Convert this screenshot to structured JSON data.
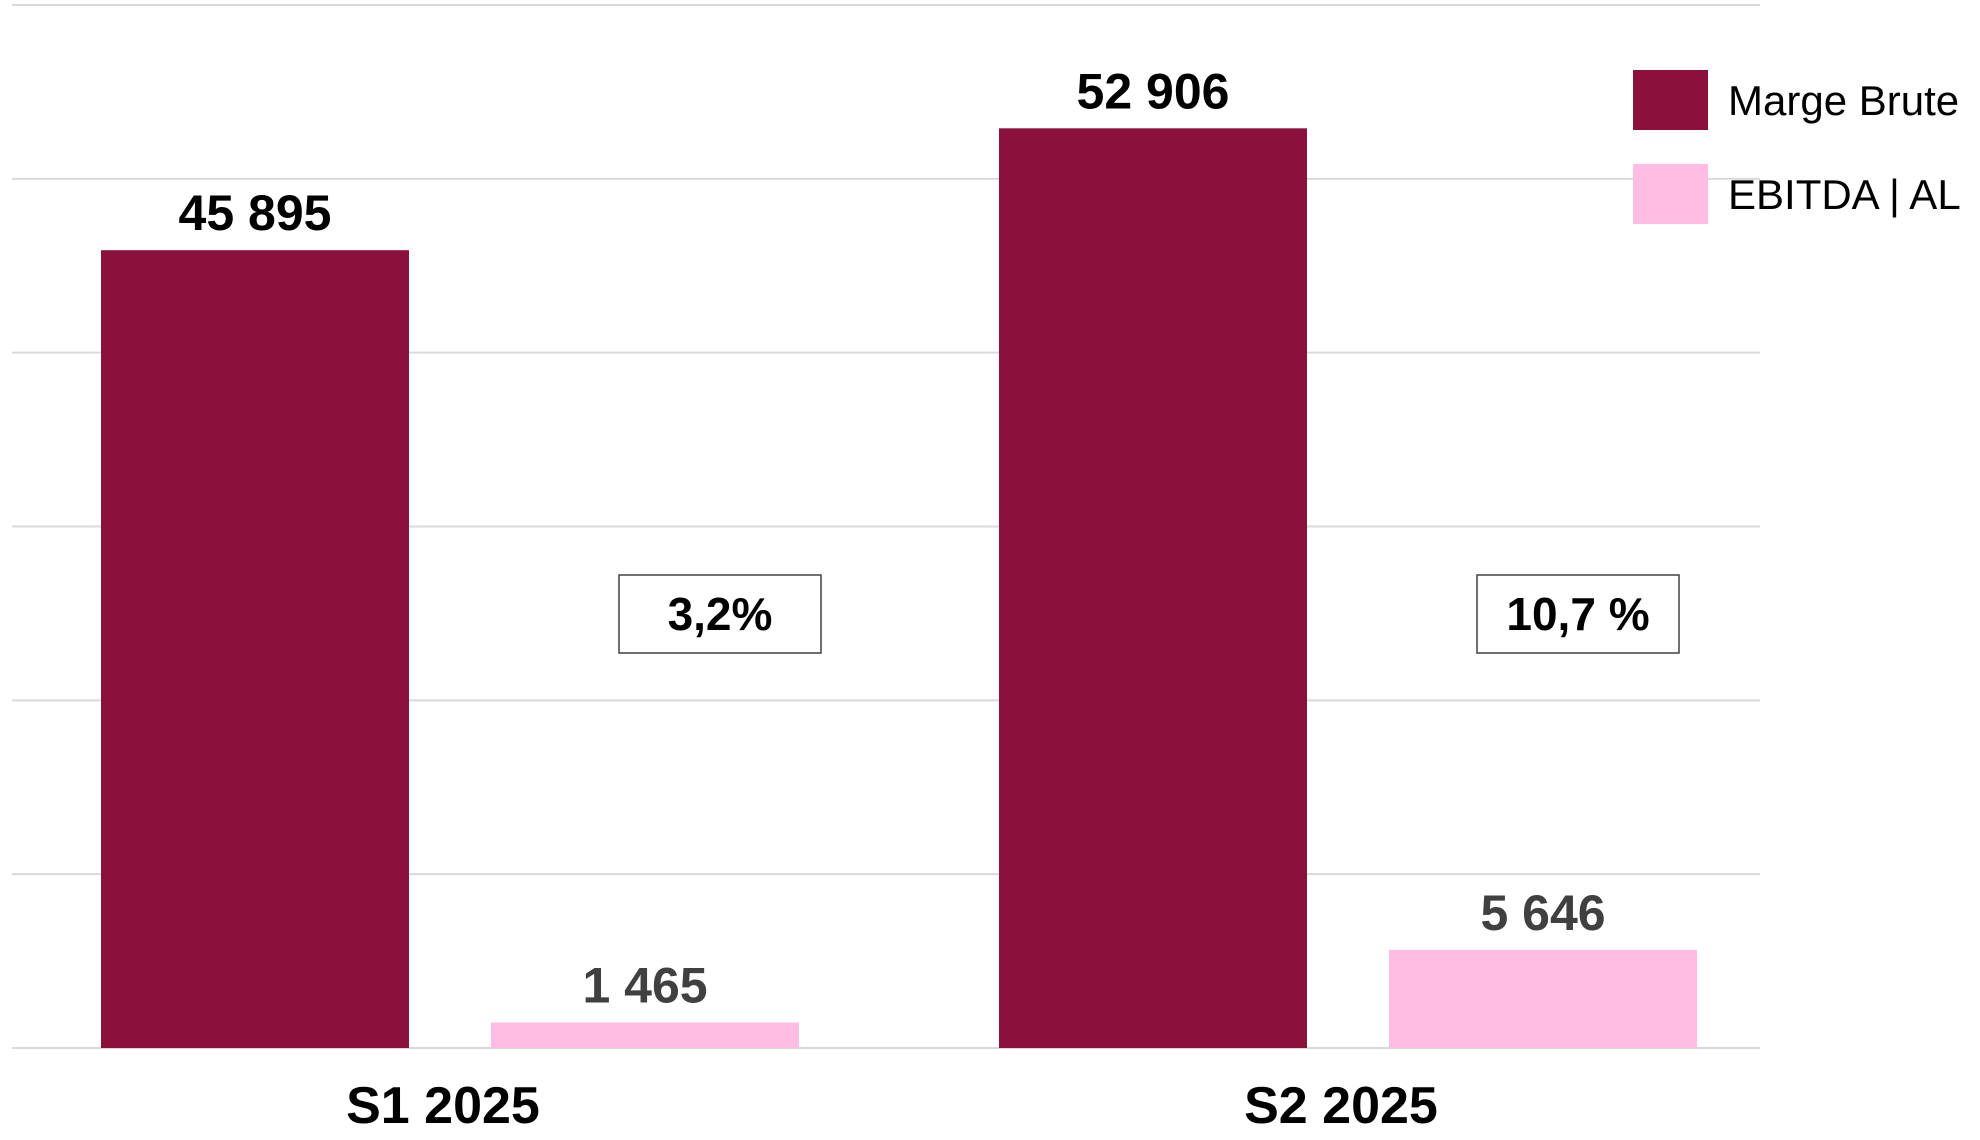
{
  "chart_data": {
    "type": "bar",
    "categories": [
      "S1 2025",
      "S2 2025"
    ],
    "series": [
      {
        "name": "Marge Brute",
        "color": "#8b103c",
        "values": [
          45895,
          52906
        ],
        "labels": [
          "45 895",
          "52 906"
        ]
      },
      {
        "name": "EBITDA | AL",
        "color": "#ffbde4",
        "values": [
          1465,
          5646
        ],
        "labels": [
          "1 465",
          "5 646"
        ]
      }
    ],
    "annotations": [
      "3,2%",
      "10,7 %"
    ],
    "ylim": [
      0,
      60000
    ],
    "y_gridline_step": 10000,
    "grid": true,
    "legend_position": "top-right",
    "title": "",
    "xlabel": "",
    "ylabel": ""
  }
}
